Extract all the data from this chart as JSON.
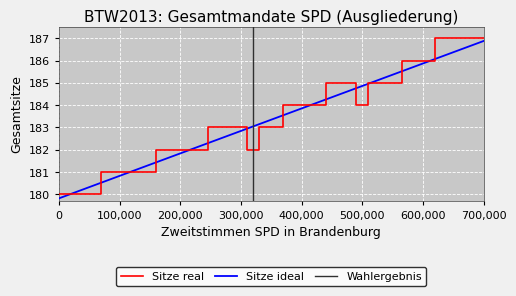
{
  "title": "BTW2013: Gesamtmandate SPD (Ausgliederung)",
  "xlabel": "Zweitstimmen SPD in Brandenburg",
  "ylabel": "Gesamtsitze",
  "xmin": 0,
  "xmax": 700000,
  "ymin": 179.7,
  "ymax": 187.5,
  "yticks": [
    180,
    181,
    182,
    183,
    184,
    185,
    186,
    187
  ],
  "xticks": [
    0,
    100000,
    200000,
    300000,
    400000,
    500000,
    600000,
    700000
  ],
  "wahlergebnis_x": 320000,
  "plot_bg_color": "#c8c8c8",
  "fig_bg_color": "#f0f0f0",
  "grid_color": "#ffffff",
  "title_fontsize": 11,
  "axis_fontsize": 9,
  "tick_fontsize": 8,
  "legend_fontsize": 8,
  "sitze_real_steps": [
    [
      0,
      180
    ],
    [
      70000,
      180
    ],
    [
      70000,
      181
    ],
    [
      160000,
      181
    ],
    [
      160000,
      182
    ],
    [
      245000,
      182
    ],
    [
      245000,
      183
    ],
    [
      310000,
      183
    ],
    [
      310000,
      182
    ],
    [
      330000,
      182
    ],
    [
      330000,
      183
    ],
    [
      370000,
      183
    ],
    [
      370000,
      184
    ],
    [
      440000,
      184
    ],
    [
      440000,
      185
    ],
    [
      490000,
      185
    ],
    [
      490000,
      184
    ],
    [
      510000,
      184
    ],
    [
      510000,
      185
    ],
    [
      565000,
      185
    ],
    [
      565000,
      186
    ],
    [
      620000,
      186
    ],
    [
      620000,
      187
    ],
    [
      700000,
      187
    ]
  ],
  "sitze_ideal_start_x": 0,
  "sitze_ideal_start_y": 179.82,
  "sitze_ideal_end_x": 700000,
  "sitze_ideal_end_y": 186.88
}
